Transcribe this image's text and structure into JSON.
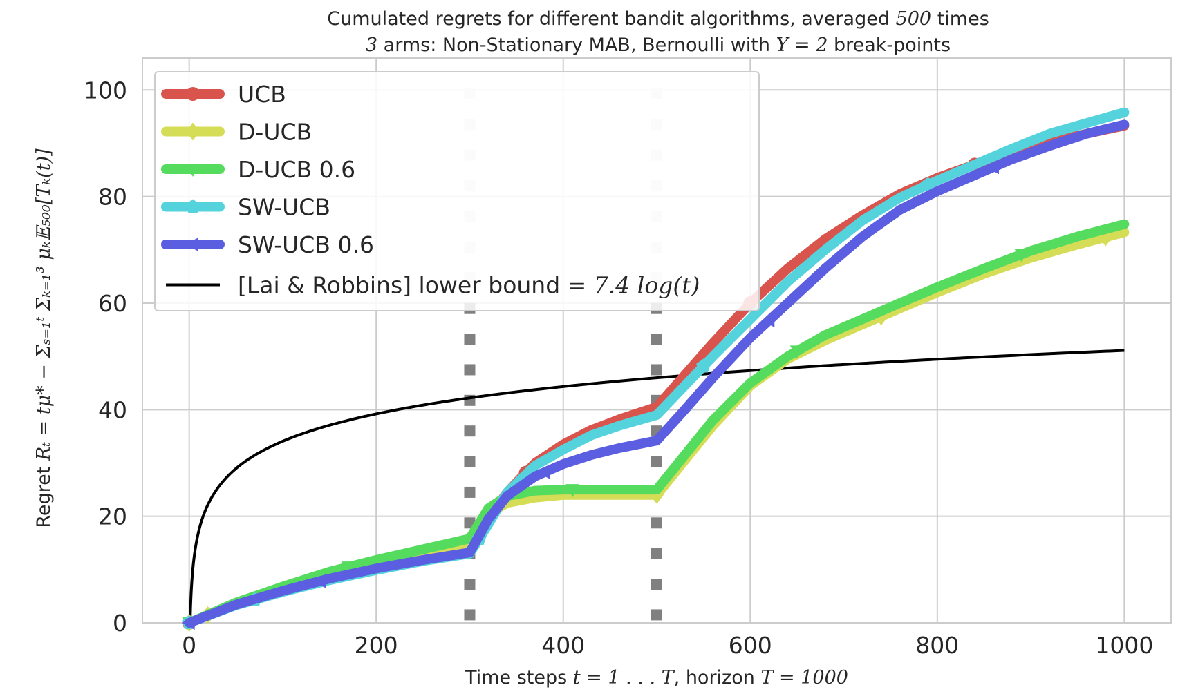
{
  "chart_data": {
    "type": "line",
    "title_line1_pre": "Cumulated regrets for different bandit algorithms, averaged ",
    "title_line1_math": "500",
    "title_line1_post": " times",
    "title_line2_math1": "3",
    "title_line2_mid": " arms: Non-Stationary MAB, Bernoulli with ",
    "title_line2_math2": "Υ = 2",
    "title_line2_post": " break-points",
    "xlabel_pre": "Time steps ",
    "xlabel_math1": "t = 1 . . . T",
    "xlabel_mid": ", horizon ",
    "xlabel_math2": "T = 1000",
    "ylabel_pre": "Regret ",
    "ylabel_math": "Rₜ = tμ* − Σₛ₌₁ᵗ Σₖ₌₁³ μₖ𝔼₅₀₀[Tₖ(t)]",
    "xlim": [
      -50,
      1050
    ],
    "ylim": [
      0,
      106
    ],
    "xticks": [
      "0",
      "200",
      "400",
      "600",
      "800",
      "1000"
    ],
    "xtick_values": [
      0,
      200,
      400,
      600,
      800,
      1000
    ],
    "yticks": [
      "0",
      "20",
      "40",
      "60",
      "80",
      "100"
    ],
    "ytick_values": [
      0,
      20,
      40,
      60,
      80,
      100
    ],
    "grid": true,
    "legend_position": "top-left",
    "breakpoints": [
      300,
      500
    ],
    "series": [
      {
        "name": "UCB",
        "color": "#d9544d",
        "marker": "circle",
        "x": [
          0,
          50,
          100,
          150,
          200,
          250,
          300,
          320,
          340,
          370,
          400,
          430,
          460,
          500,
          530,
          560,
          600,
          640,
          680,
          720,
          760,
          800,
          840,
          880,
          920,
          960,
          1000
        ],
        "y": [
          0,
          3.5,
          6.2,
          8.5,
          10.5,
          12.3,
          14.2,
          19.5,
          24.5,
          30.0,
          33.5,
          36.2,
          38.2,
          40.5,
          46.5,
          52.5,
          60.0,
          66.5,
          72.0,
          76.5,
          80.5,
          83.5,
          86.0,
          88.3,
          90.2,
          91.8,
          93.3
        ]
      },
      {
        "name": "D-UCB",
        "color": "#d5dc55",
        "marker": "diamond",
        "x": [
          0,
          50,
          100,
          150,
          200,
          250,
          300,
          320,
          340,
          370,
          400,
          450,
          500,
          530,
          560,
          600,
          640,
          680,
          720,
          760,
          800,
          850,
          900,
          950,
          1000
        ],
        "y": [
          0,
          3.6,
          6.3,
          8.6,
          10.6,
          12.5,
          14.5,
          20.5,
          22.5,
          23.5,
          24.0,
          24.0,
          24.0,
          30.5,
          37.0,
          44.5,
          49.5,
          53.0,
          56.0,
          59.0,
          62.0,
          65.5,
          68.5,
          71.0,
          73.3
        ]
      },
      {
        "name": "D-UCB 0.6",
        "color": "#55db5d",
        "marker": "triangle-down",
        "x": [
          0,
          50,
          100,
          150,
          200,
          250,
          300,
          320,
          340,
          370,
          400,
          450,
          500,
          530,
          560,
          600,
          640,
          680,
          720,
          760,
          800,
          850,
          900,
          950,
          1000
        ],
        "y": [
          0,
          3.8,
          6.8,
          9.6,
          11.8,
          13.8,
          15.8,
          21.5,
          23.8,
          24.8,
          25.0,
          25.0,
          25.0,
          31.5,
          38.0,
          45.0,
          50.0,
          54.0,
          57.0,
          60.0,
          63.0,
          66.5,
          69.8,
          72.5,
          74.8
        ]
      },
      {
        "name": "SW-UCB",
        "color": "#55d3dc",
        "marker": "pentagon",
        "x": [
          0,
          50,
          100,
          150,
          200,
          250,
          300,
          320,
          340,
          370,
          400,
          430,
          460,
          500,
          530,
          560,
          600,
          640,
          680,
          720,
          760,
          800,
          840,
          880,
          920,
          960,
          1000
        ],
        "y": [
          0,
          3.3,
          5.8,
          8.0,
          9.9,
          11.6,
          13.0,
          18.5,
          24.5,
          29.5,
          32.5,
          35.2,
          37.0,
          39.0,
          44.5,
          50.0,
          57.0,
          64.0,
          70.0,
          75.5,
          79.8,
          83.0,
          86.0,
          89.0,
          91.8,
          93.8,
          95.8
        ]
      },
      {
        "name": "SW-UCB 0.6",
        "color": "#5b5ee0",
        "marker": "triangle-left",
        "x": [
          0,
          50,
          100,
          150,
          200,
          250,
          300,
          320,
          340,
          370,
          400,
          430,
          460,
          500,
          530,
          560,
          600,
          640,
          680,
          720,
          760,
          800,
          840,
          880,
          920,
          960,
          1000
        ],
        "y": [
          0,
          3.4,
          6.0,
          8.3,
          10.2,
          11.8,
          13.2,
          19.5,
          23.8,
          27.5,
          29.8,
          31.5,
          32.8,
          34.2,
          40.0,
          46.0,
          53.5,
          60.0,
          66.5,
          72.5,
          77.5,
          81.0,
          84.0,
          87.0,
          89.5,
          91.8,
          93.5
        ]
      }
    ],
    "bound": {
      "name_pre": "[Lai & Robbins] lower bound = ",
      "name_math": "7.4 log(t)",
      "color": "#000000",
      "coefficient": 7.4,
      "x_max": 1000
    }
  }
}
